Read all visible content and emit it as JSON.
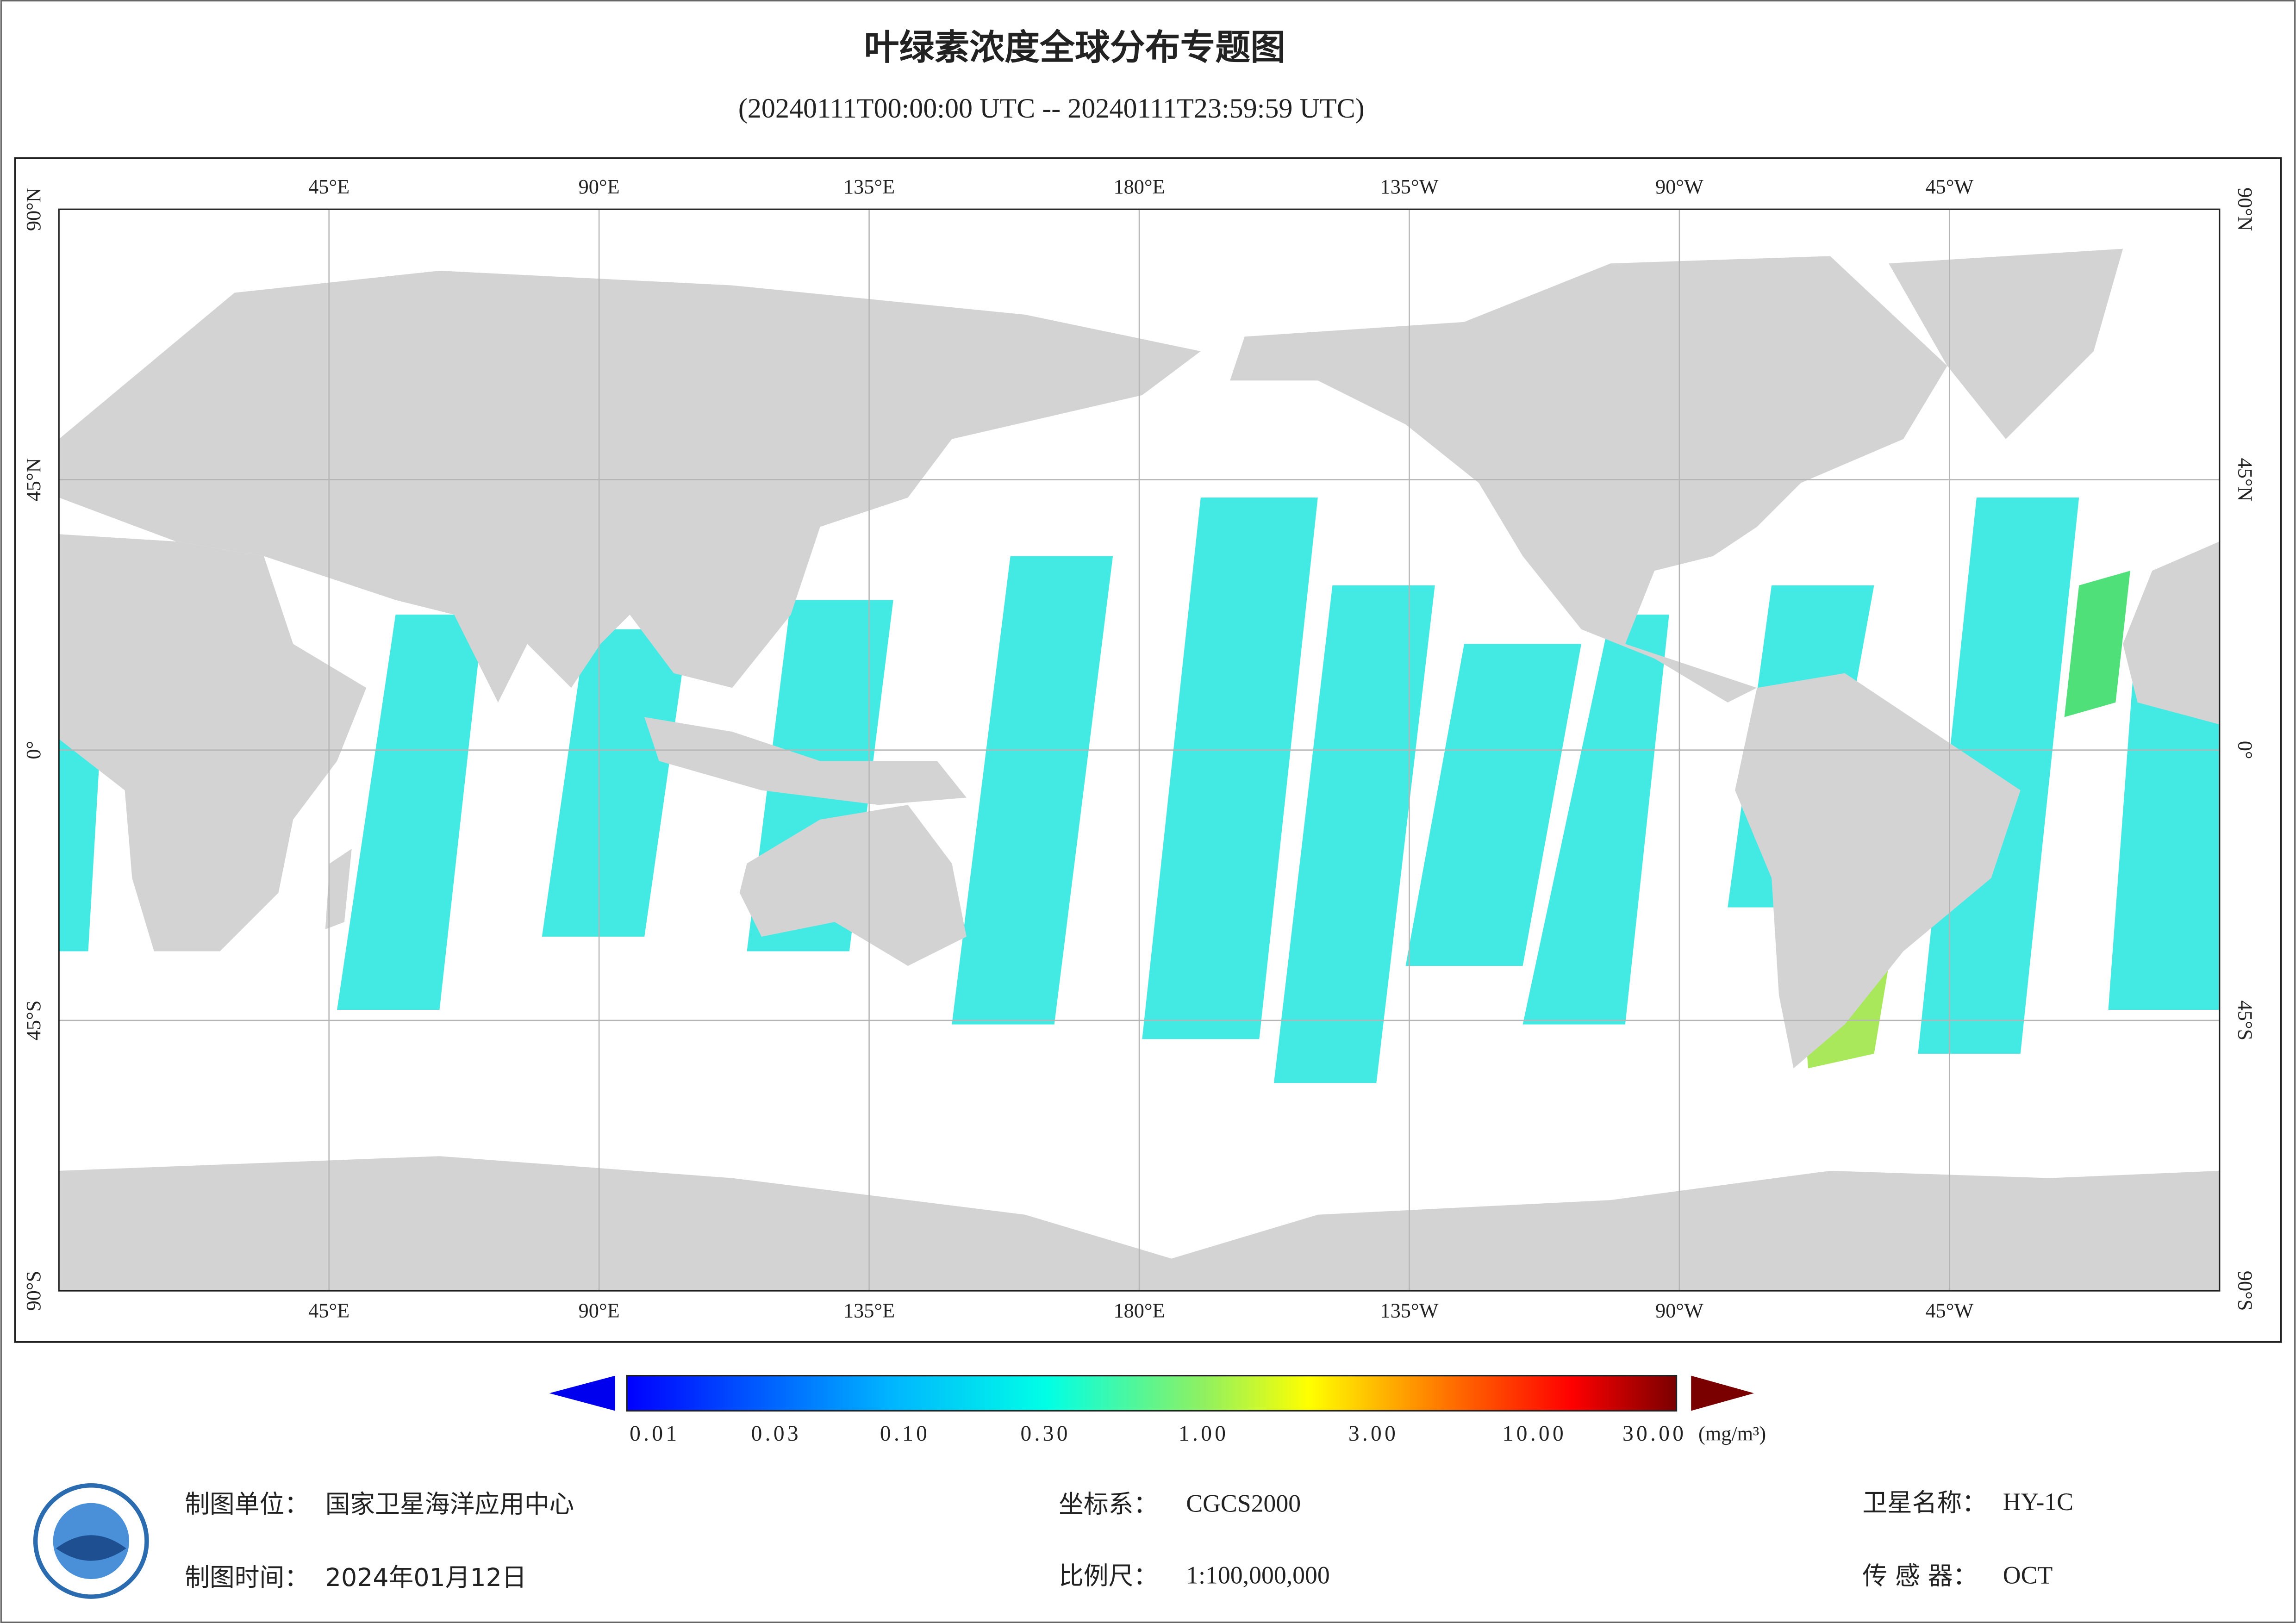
{
  "header": {
    "title": "叶绿素浓度全球分布专题图",
    "subtitle": "(20240111T00:00:00 UTC -- 20240111T23:59:59 UTC)"
  },
  "map": {
    "lon_labels": [
      "45°E",
      "90°E",
      "135°E",
      "180°E",
      "135°W",
      "90°W",
      "45°W"
    ],
    "lat_labels": [
      "90°N",
      "45°N",
      "0°",
      "45°S",
      "90°S"
    ]
  },
  "colorbar": {
    "labels": [
      "0.01",
      "0.03",
      "0.10",
      "0.30",
      "1.00",
      "3.00",
      "10.00",
      "30.00"
    ],
    "unit": "(mg/m³)"
  },
  "footer": {
    "unit_label": "制图单位：",
    "unit": "国家卫星海洋应用中心",
    "time_label": "制图时间：",
    "time": "2024年01月12日",
    "crs_label": "坐标系：",
    "crs": "CGCS2000",
    "scale_label": "比例尺：",
    "scale": "1:100,000,000",
    "satellite_label": "卫星名称：",
    "satellite": "HY-1C",
    "sensor_label": "传 感 器：",
    "sensor": "OCT"
  }
}
